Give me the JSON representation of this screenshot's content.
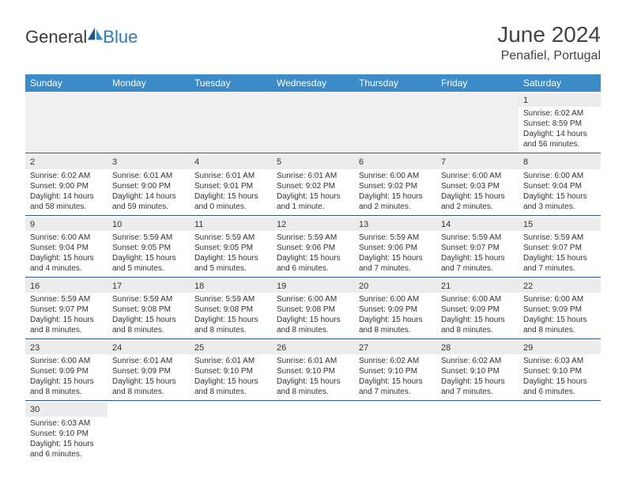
{
  "logo": {
    "general": "General",
    "blue": "Blue"
  },
  "title": "June 2024",
  "location": "Penafiel, Portugal",
  "colors": {
    "header_bg": "#3b8bc9",
    "header_text": "#ffffff",
    "row_divider": "#2a5b8a",
    "daynum_bg": "#ececec",
    "empty_bg": "#f0f0f0",
    "logo_blue": "#2a7bc0"
  },
  "weekdays": [
    "Sunday",
    "Monday",
    "Tuesday",
    "Wednesday",
    "Thursday",
    "Friday",
    "Saturday"
  ],
  "weeks": [
    [
      null,
      null,
      null,
      null,
      null,
      null,
      {
        "n": "1",
        "sr": "Sunrise: 6:02 AM",
        "ss": "Sunset: 8:59 PM",
        "dl1": "Daylight: 14 hours",
        "dl2": "and 56 minutes."
      }
    ],
    [
      {
        "n": "2",
        "sr": "Sunrise: 6:02 AM",
        "ss": "Sunset: 9:00 PM",
        "dl1": "Daylight: 14 hours",
        "dl2": "and 58 minutes."
      },
      {
        "n": "3",
        "sr": "Sunrise: 6:01 AM",
        "ss": "Sunset: 9:00 PM",
        "dl1": "Daylight: 14 hours",
        "dl2": "and 59 minutes."
      },
      {
        "n": "4",
        "sr": "Sunrise: 6:01 AM",
        "ss": "Sunset: 9:01 PM",
        "dl1": "Daylight: 15 hours",
        "dl2": "and 0 minutes."
      },
      {
        "n": "5",
        "sr": "Sunrise: 6:01 AM",
        "ss": "Sunset: 9:02 PM",
        "dl1": "Daylight: 15 hours",
        "dl2": "and 1 minute."
      },
      {
        "n": "6",
        "sr": "Sunrise: 6:00 AM",
        "ss": "Sunset: 9:02 PM",
        "dl1": "Daylight: 15 hours",
        "dl2": "and 2 minutes."
      },
      {
        "n": "7",
        "sr": "Sunrise: 6:00 AM",
        "ss": "Sunset: 9:03 PM",
        "dl1": "Daylight: 15 hours",
        "dl2": "and 2 minutes."
      },
      {
        "n": "8",
        "sr": "Sunrise: 6:00 AM",
        "ss": "Sunset: 9:04 PM",
        "dl1": "Daylight: 15 hours",
        "dl2": "and 3 minutes."
      }
    ],
    [
      {
        "n": "9",
        "sr": "Sunrise: 6:00 AM",
        "ss": "Sunset: 9:04 PM",
        "dl1": "Daylight: 15 hours",
        "dl2": "and 4 minutes."
      },
      {
        "n": "10",
        "sr": "Sunrise: 5:59 AM",
        "ss": "Sunset: 9:05 PM",
        "dl1": "Daylight: 15 hours",
        "dl2": "and 5 minutes."
      },
      {
        "n": "11",
        "sr": "Sunrise: 5:59 AM",
        "ss": "Sunset: 9:05 PM",
        "dl1": "Daylight: 15 hours",
        "dl2": "and 5 minutes."
      },
      {
        "n": "12",
        "sr": "Sunrise: 5:59 AM",
        "ss": "Sunset: 9:06 PM",
        "dl1": "Daylight: 15 hours",
        "dl2": "and 6 minutes."
      },
      {
        "n": "13",
        "sr": "Sunrise: 5:59 AM",
        "ss": "Sunset: 9:06 PM",
        "dl1": "Daylight: 15 hours",
        "dl2": "and 7 minutes."
      },
      {
        "n": "14",
        "sr": "Sunrise: 5:59 AM",
        "ss": "Sunset: 9:07 PM",
        "dl1": "Daylight: 15 hours",
        "dl2": "and 7 minutes."
      },
      {
        "n": "15",
        "sr": "Sunrise: 5:59 AM",
        "ss": "Sunset: 9:07 PM",
        "dl1": "Daylight: 15 hours",
        "dl2": "and 7 minutes."
      }
    ],
    [
      {
        "n": "16",
        "sr": "Sunrise: 5:59 AM",
        "ss": "Sunset: 9:07 PM",
        "dl1": "Daylight: 15 hours",
        "dl2": "and 8 minutes."
      },
      {
        "n": "17",
        "sr": "Sunrise: 5:59 AM",
        "ss": "Sunset: 9:08 PM",
        "dl1": "Daylight: 15 hours",
        "dl2": "and 8 minutes."
      },
      {
        "n": "18",
        "sr": "Sunrise: 5:59 AM",
        "ss": "Sunset: 9:08 PM",
        "dl1": "Daylight: 15 hours",
        "dl2": "and 8 minutes."
      },
      {
        "n": "19",
        "sr": "Sunrise: 6:00 AM",
        "ss": "Sunset: 9:08 PM",
        "dl1": "Daylight: 15 hours",
        "dl2": "and 8 minutes."
      },
      {
        "n": "20",
        "sr": "Sunrise: 6:00 AM",
        "ss": "Sunset: 9:09 PM",
        "dl1": "Daylight: 15 hours",
        "dl2": "and 8 minutes."
      },
      {
        "n": "21",
        "sr": "Sunrise: 6:00 AM",
        "ss": "Sunset: 9:09 PM",
        "dl1": "Daylight: 15 hours",
        "dl2": "and 8 minutes."
      },
      {
        "n": "22",
        "sr": "Sunrise: 6:00 AM",
        "ss": "Sunset: 9:09 PM",
        "dl1": "Daylight: 15 hours",
        "dl2": "and 8 minutes."
      }
    ],
    [
      {
        "n": "23",
        "sr": "Sunrise: 6:00 AM",
        "ss": "Sunset: 9:09 PM",
        "dl1": "Daylight: 15 hours",
        "dl2": "and 8 minutes."
      },
      {
        "n": "24",
        "sr": "Sunrise: 6:01 AM",
        "ss": "Sunset: 9:09 PM",
        "dl1": "Daylight: 15 hours",
        "dl2": "and 8 minutes."
      },
      {
        "n": "25",
        "sr": "Sunrise: 6:01 AM",
        "ss": "Sunset: 9:10 PM",
        "dl1": "Daylight: 15 hours",
        "dl2": "and 8 minutes."
      },
      {
        "n": "26",
        "sr": "Sunrise: 6:01 AM",
        "ss": "Sunset: 9:10 PM",
        "dl1": "Daylight: 15 hours",
        "dl2": "and 8 minutes."
      },
      {
        "n": "27",
        "sr": "Sunrise: 6:02 AM",
        "ss": "Sunset: 9:10 PM",
        "dl1": "Daylight: 15 hours",
        "dl2": "and 7 minutes."
      },
      {
        "n": "28",
        "sr": "Sunrise: 6:02 AM",
        "ss": "Sunset: 9:10 PM",
        "dl1": "Daylight: 15 hours",
        "dl2": "and 7 minutes."
      },
      {
        "n": "29",
        "sr": "Sunrise: 6:03 AM",
        "ss": "Sunset: 9:10 PM",
        "dl1": "Daylight: 15 hours",
        "dl2": "and 6 minutes."
      }
    ],
    [
      {
        "n": "30",
        "sr": "Sunrise: 6:03 AM",
        "ss": "Sunset: 9:10 PM",
        "dl1": "Daylight: 15 hours",
        "dl2": "and 6 minutes."
      },
      null,
      null,
      null,
      null,
      null,
      null
    ]
  ]
}
